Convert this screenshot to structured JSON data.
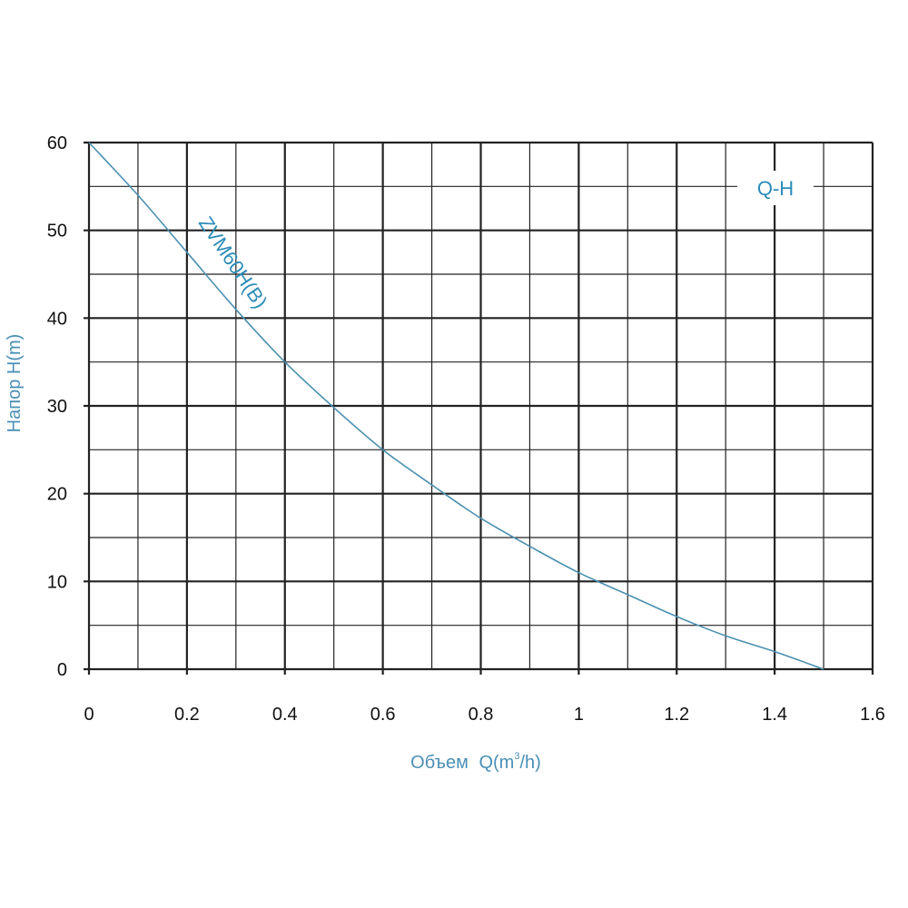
{
  "chart_data": {
    "type": "line",
    "title": "",
    "xlabel_main": "Объем",
    "xlabel_q": "Q(m",
    "xlabel_sup": "3",
    "xlabel_tail": "/h)",
    "ylabel": "Напор H(m)",
    "xlim": [
      0,
      1.6
    ],
    "ylim": [
      0,
      60
    ],
    "x_ticks": [
      0,
      0.2,
      0.4,
      0.6,
      0.8,
      1,
      1.2,
      1.4,
      1.6
    ],
    "x_tick_labels": [
      "0",
      "0.2",
      "0.4",
      "0.6",
      "0.8",
      "1",
      "1.2",
      "1.4",
      "1.6"
    ],
    "y_ticks": [
      0,
      10,
      20,
      30,
      40,
      50,
      60
    ],
    "y_tick_labels": [
      "0",
      "10",
      "20",
      "30",
      "40",
      "50",
      "60"
    ],
    "grid": true,
    "series": [
      {
        "name": "ZVM60H(B)",
        "x": [
          0,
          0.1,
          0.2,
          0.3,
          0.4,
          0.5,
          0.6,
          0.7,
          0.8,
          0.9,
          1.0,
          1.1,
          1.2,
          1.3,
          1.4,
          1.5
        ],
        "y": [
          60,
          54,
          47.5,
          41,
          35,
          29.8,
          25,
          21,
          17.2,
          14,
          11,
          8.5,
          6,
          3.8,
          2,
          0
        ]
      }
    ],
    "annotation": "Q-H",
    "colors": {
      "curve": "#4a90b0",
      "text": "#4a8fb5",
      "grid": "#222222",
      "annotation": "#2b8cb8"
    }
  }
}
